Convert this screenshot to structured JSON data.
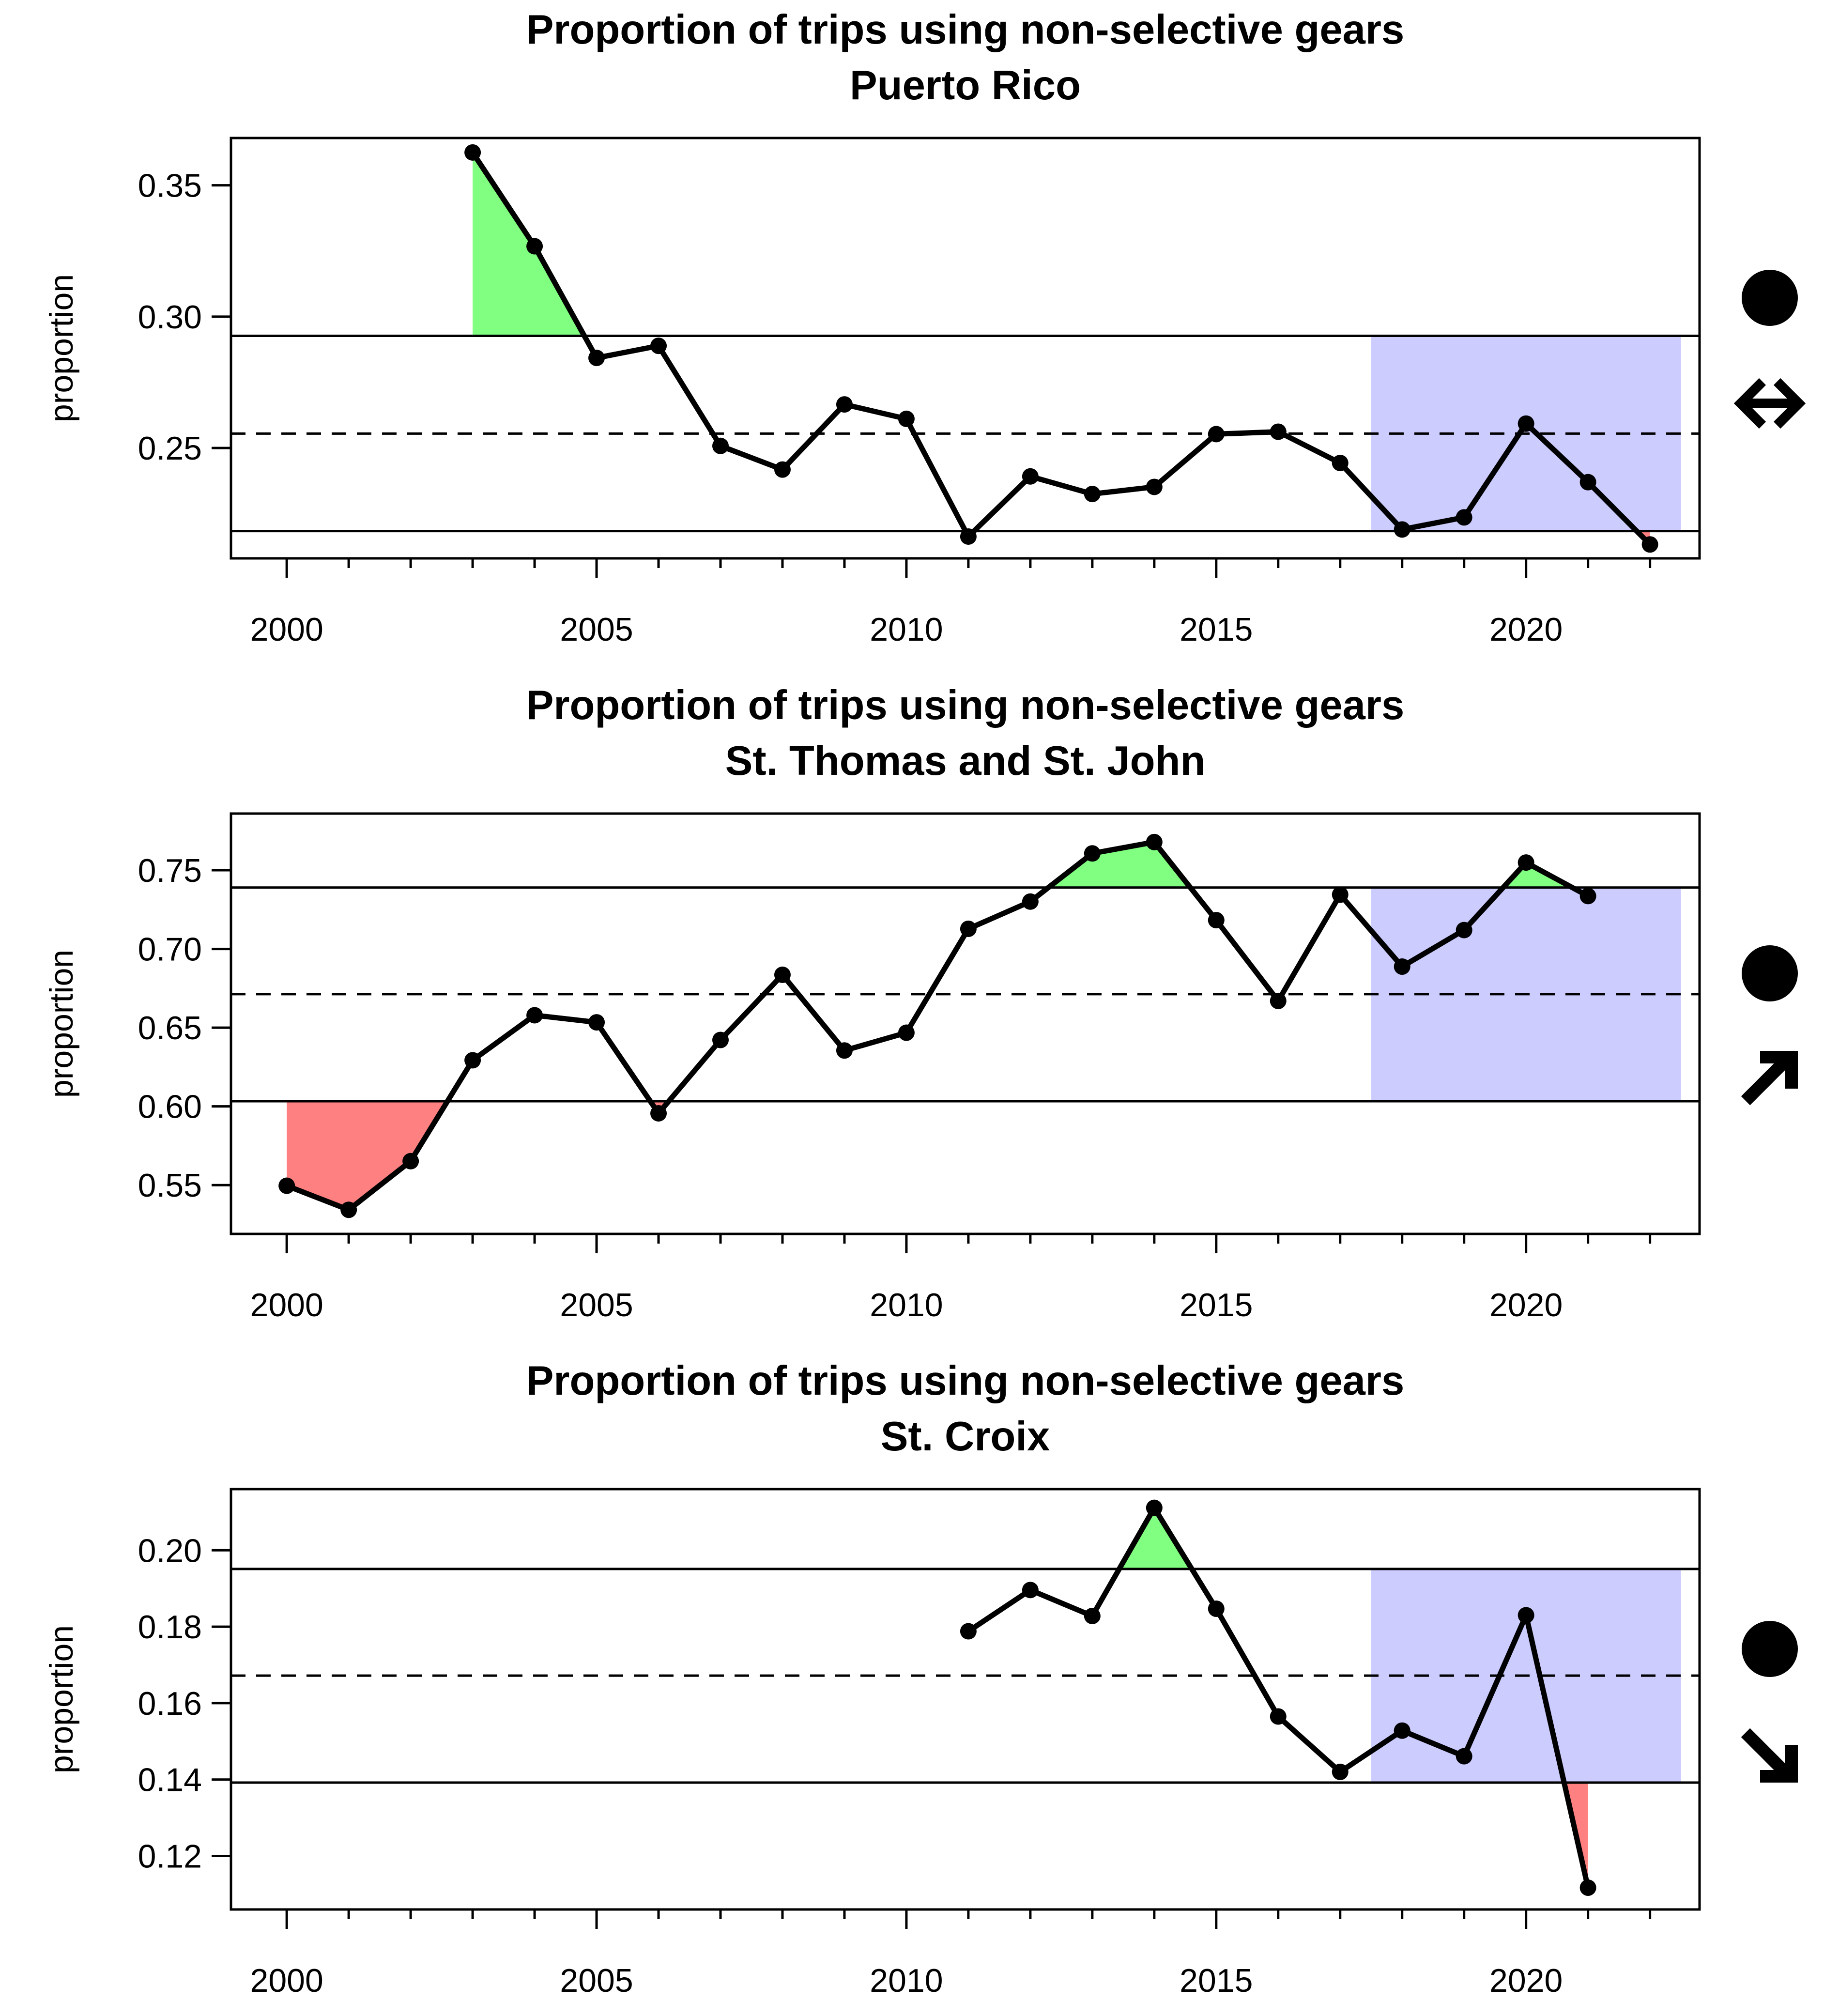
{
  "chart_data": [
    {
      "type": "line",
      "title": "Proportion of trips using non-selective gears",
      "subtitle": "Puerto Rico",
      "ylabel": "proportion",
      "xlabel": "",
      "xlim": [
        1999.1,
        2022.8
      ],
      "ylim": [
        0.208,
        0.368
      ],
      "x_ticks": [
        2000,
        2005,
        2010,
        2015,
        2020
      ],
      "x_ticks_labels": [
        "2000",
        "2005",
        "2010",
        "2015",
        "2020"
      ],
      "y_ticks": [
        0.25,
        0.3,
        0.35
      ],
      "y_ticks_labels": [
        "0.25",
        "0.30",
        "0.35"
      ],
      "mean": 0.2555,
      "upper": 0.2927,
      "lower": 0.2184,
      "recent_window": [
        2017.5,
        2022.5
      ],
      "indicators": [
        "circle",
        "left-right-arrow"
      ],
      "colors": {
        "above": "#80ff80",
        "below": "#ff8080",
        "recent": "#ccccff",
        "line": "#000000"
      },
      "series": [
        {
          "x": [
            2003,
            2004,
            2005,
            2006,
            2007,
            2008,
            2009,
            2010,
            2011,
            2012,
            2013,
            2014,
            2015,
            2016,
            2017,
            2018,
            2019,
            2020,
            2021,
            2022
          ],
          "values": [
            0.3625,
            0.3268,
            0.2843,
            0.2889,
            0.2508,
            0.2418,
            0.2666,
            0.2611,
            0.2163,
            0.2392,
            0.2325,
            0.2352,
            0.2553,
            0.2562,
            0.2443,
            0.219,
            0.2236,
            0.2593,
            0.237,
            0.2133
          ]
        }
      ]
    },
    {
      "type": "line",
      "title": "Proportion of trips using non-selective gears",
      "subtitle": "St. Thomas and St. John",
      "ylabel": "proportion",
      "xlabel": "",
      "xlim": [
        1999.1,
        2022.8
      ],
      "ylim": [
        0.519,
        0.786
      ],
      "x_ticks": [
        2000,
        2005,
        2010,
        2015,
        2020
      ],
      "x_ticks_labels": [
        "2000",
        "2005",
        "2010",
        "2015",
        "2020"
      ],
      "y_ticks": [
        0.55,
        0.6,
        0.65,
        0.7,
        0.75
      ],
      "y_ticks_labels": [
        "0.55",
        "0.60",
        "0.65",
        "0.70",
        "0.75"
      ],
      "mean": 0.6713,
      "upper": 0.739,
      "lower": 0.6033,
      "recent_window": [
        2017.5,
        2022.5
      ],
      "indicators": [
        "circle",
        "up-right-arrow"
      ],
      "colors": {
        "above": "#80ff80",
        "below": "#ff8080",
        "recent": "#ccccff",
        "line": "#000000"
      },
      "series": [
        {
          "x": [
            2000,
            2001,
            2002,
            2003,
            2004,
            2005,
            2006,
            2007,
            2008,
            2009,
            2010,
            2011,
            2012,
            2013,
            2014,
            2015,
            2016,
            2017,
            2018,
            2019,
            2020,
            2021
          ],
          "values": [
            0.5496,
            0.5343,
            0.5652,
            0.6293,
            0.6579,
            0.6534,
            0.5956,
            0.6422,
            0.6836,
            0.6355,
            0.6468,
            0.7128,
            0.7301,
            0.7607,
            0.7679,
            0.7183,
            0.667,
            0.7345,
            0.6888,
            0.712,
            0.7549,
            0.7336
          ]
        }
      ]
    },
    {
      "type": "line",
      "title": "Proportion of trips using non-selective gears",
      "subtitle": "St. Croix",
      "ylabel": "proportion",
      "xlabel": "",
      "xlim": [
        1999.1,
        2022.8
      ],
      "ylim": [
        0.106,
        0.216
      ],
      "x_ticks": [
        2000,
        2005,
        2010,
        2015,
        2020
      ],
      "x_ticks_labels": [
        "2000",
        "2005",
        "2010",
        "2015",
        "2020"
      ],
      "y_ticks": [
        0.12,
        0.14,
        0.16,
        0.18,
        0.2
      ],
      "y_ticks_labels": [
        "0.12",
        "0.14",
        "0.16",
        "0.18",
        "0.20"
      ],
      "mean": 0.1672,
      "upper": 0.1951,
      "lower": 0.1392,
      "recent_window": [
        2017.5,
        2022.5
      ],
      "indicators": [
        "circle",
        "down-right-arrow"
      ],
      "colors": {
        "above": "#80ff80",
        "below": "#ff8080",
        "recent": "#ccccff",
        "line": "#000000"
      },
      "series": [
        {
          "x": [
            2011,
            2012,
            2013,
            2014,
            2015,
            2016,
            2017,
            2018,
            2019,
            2020,
            2021
          ],
          "values": [
            0.1788,
            0.1896,
            0.1828,
            0.2111,
            0.1847,
            0.1565,
            0.142,
            0.1528,
            0.1461,
            0.183,
            0.1117
          ]
        }
      ]
    }
  ]
}
